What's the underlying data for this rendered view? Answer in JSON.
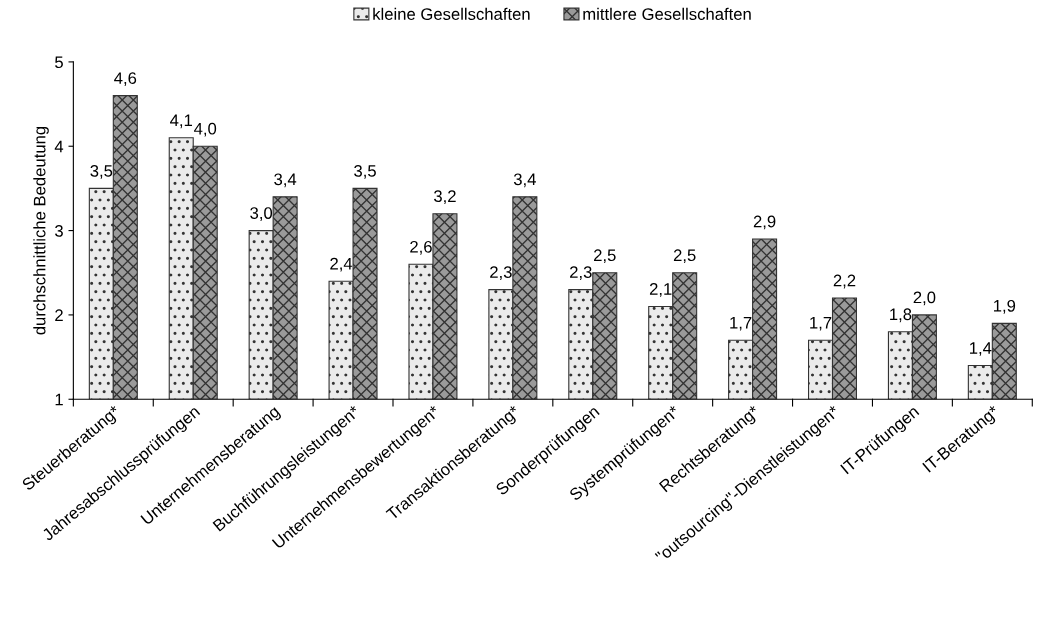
{
  "chart_data": {
    "type": "bar",
    "ylabel": "durchschnittliche Bedeutung",
    "categories": [
      "Steuerberatung*",
      "Jahresabschlussprüfungen",
      "Unternehmensberatung",
      "Buchführungsleistungen*",
      "Unternehmensbewertungen*",
      "Transaktionsberatung*",
      "Sonderprüfungen",
      "Systemprüfungen*",
      "Rechtsberatung*",
      "\"outsourcing\"-Dienstleistungen*",
      "IT-Prüfungen",
      "IT-Beratung*"
    ],
    "series": [
      {
        "name": "kleine Gesellschaften",
        "color": "#ebebeb",
        "values": [
          3.5,
          4.1,
          3.0,
          2.4,
          2.6,
          2.3,
          2.3,
          2.1,
          1.7,
          1.7,
          1.8,
          1.4
        ],
        "value_labels": [
          "3,5",
          "4,1",
          "3,0",
          "2,4",
          "2,6",
          "2,3",
          "2,3",
          "2,1",
          "1,7",
          "1,7",
          "1,8",
          "1,4"
        ]
      },
      {
        "name": "mittlere Gesellschaften",
        "color": "#9a9a9a",
        "values": [
          4.6,
          4.0,
          3.4,
          3.5,
          3.2,
          3.4,
          2.5,
          2.5,
          2.9,
          2.2,
          2.0,
          1.9
        ],
        "value_labels": [
          "4,6",
          "4,0",
          "3,4",
          "3,5",
          "3,2",
          "3,4",
          "2,5",
          "2,5",
          "2,9",
          "2,2",
          "2,0",
          "1,9"
        ]
      }
    ],
    "ylim": [
      1,
      5
    ],
    "yticks": [
      1,
      2,
      3,
      4,
      5
    ],
    "grid": false,
    "legend": "top"
  }
}
